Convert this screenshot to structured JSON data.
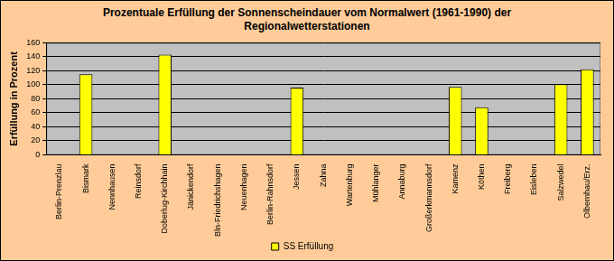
{
  "chart_data": {
    "type": "bar",
    "title": "Prozentuale Erfüllung der Sonnenscheindauer vom Normalwert (1961-1990) der Regionalwetterstationen",
    "y_label": "Erfüllung in Prozent",
    "categories": [
      "Berlin-Prenzlau",
      "Bismark",
      "Nennhausen",
      "Reinsdorf",
      "Doberlug-Kirchhain",
      "Jänickendorf",
      "Bln-Friedrichshagen",
      "Neuenhagen",
      "Berlin-Rahnsdorf",
      "Jessen",
      "Zahna",
      "Wartenburg",
      "Mühlanger",
      "Annaburg",
      "Großerkmannsdorf",
      "Kamenz",
      "Köthen",
      "Freiberg",
      "Eisleben",
      "Salzwedel",
      "Olbernhau/Erz."
    ],
    "series": [
      {
        "name": "SS Erfüllung",
        "color": "#ffff00",
        "values": [
          null,
          115,
          null,
          null,
          143,
          null,
          null,
          null,
          null,
          96,
          null,
          null,
          null,
          null,
          null,
          97,
          68,
          null,
          null,
          101,
          122
        ]
      }
    ],
    "ylim": [
      0,
      160
    ],
    "yticks": [
      0,
      20,
      40,
      60,
      80,
      100,
      120,
      140,
      160
    ],
    "grid": true,
    "legend": "bottom"
  }
}
